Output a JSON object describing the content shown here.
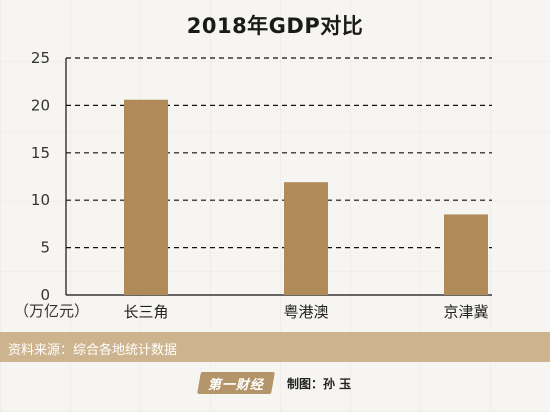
{
  "chart_data": {
    "type": "bar",
    "title": "2018年GDP对比",
    "categories": [
      "长三角",
      "粤港澳",
      "京津冀"
    ],
    "values": [
      20.6,
      11.9,
      8.5
    ],
    "ylabel": "（万亿元）",
    "xlabel": "",
    "ylim": [
      0,
      25
    ],
    "yticks": [
      0,
      5,
      10,
      15,
      20,
      25
    ],
    "grid": true,
    "bar_color": "#b08a58"
  },
  "footer": {
    "source": "资料来源：综合各地统计数据",
    "logo": "第一财经",
    "credit": "制图：孙  玉"
  },
  "colors": {
    "band": "#cdb48f",
    "bar": "#b08a58"
  }
}
